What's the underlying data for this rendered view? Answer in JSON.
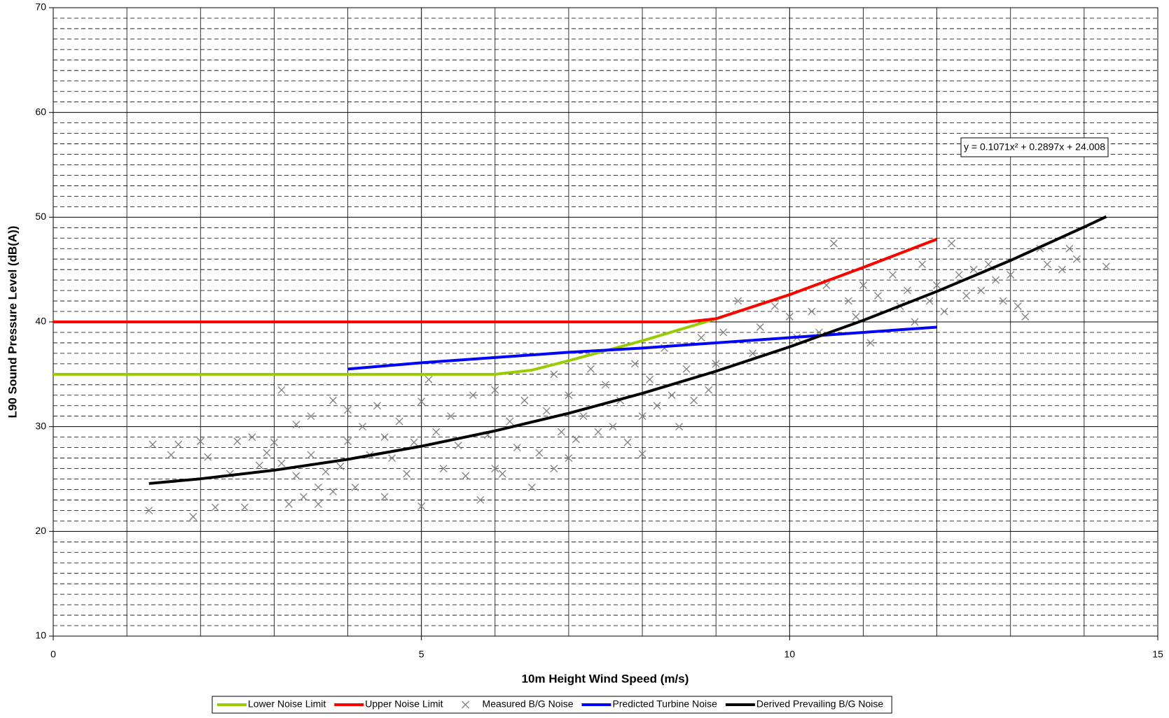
{
  "chart_data": {
    "type": "line",
    "x_label": "10m Height Wind Speed (m/s)",
    "y_label": "L90 Sound Pressure Level (dB(A))",
    "annotation": "y = 0.1071x² + 0.2897x + 24.008",
    "xlim": [
      0,
      15
    ],
    "xticks": [
      0,
      5,
      10,
      15
    ],
    "ylim": [
      10,
      70
    ],
    "yticks": [
      10,
      20,
      30,
      40,
      50,
      60,
      70
    ],
    "grid": true,
    "legend": "bottom",
    "series": [
      {
        "name": "Lower Noise Limit",
        "color": "#99cc00",
        "type": "line",
        "x": [
          0,
          1,
          2,
          3,
          4,
          5,
          6,
          6.5,
          7,
          8,
          9,
          10,
          11,
          12
        ],
        "values": [
          35,
          35,
          35,
          35,
          35,
          35,
          35,
          35.4,
          36.3,
          38.2,
          40.3,
          42.6,
          45.2,
          47.9
        ]
      },
      {
        "name": "Upper Noise Limit",
        "color": "#ff0000",
        "type": "line",
        "x": [
          0,
          1,
          2,
          3,
          4,
          5,
          6,
          7,
          8,
          8.6,
          9,
          10,
          11,
          12
        ],
        "values": [
          40,
          40,
          40,
          40,
          40,
          40,
          40,
          40,
          40,
          40,
          40.3,
          42.6,
          45.2,
          47.9
        ]
      },
      {
        "name": "Measured B/G Noise",
        "color": "#808080",
        "type": "scatter",
        "x": [
          1.3,
          1.35,
          1.6,
          1.7,
          1.9,
          2.0,
          2.1,
          2.2,
          2.4,
          2.5,
          2.6,
          2.7,
          2.8,
          2.9,
          3.0,
          3.1,
          3.1,
          3.2,
          3.3,
          3.3,
          3.4,
          3.5,
          3.5,
          3.6,
          3.6,
          3.7,
          3.8,
          3.8,
          3.9,
          4.0,
          4.0,
          4.1,
          4.2,
          4.3,
          4.4,
          4.5,
          4.5,
          4.6,
          4.7,
          4.8,
          4.9,
          5.0,
          5.0,
          5.1,
          5.2,
          5.3,
          5.4,
          5.5,
          5.6,
          5.7,
          5.8,
          5.9,
          6.0,
          6.0,
          6.1,
          6.2,
          6.3,
          6.4,
          6.5,
          6.6,
          6.7,
          6.8,
          6.8,
          6.9,
          7.0,
          7.0,
          7.1,
          7.2,
          7.3,
          7.4,
          7.5,
          7.6,
          7.7,
          7.8,
          7.9,
          8.0,
          8.0,
          8.1,
          8.2,
          8.3,
          8.4,
          8.5,
          8.6,
          8.7,
          8.8,
          8.9,
          9.0,
          9.1,
          9.3,
          9.5,
          9.6,
          9.8,
          10.0,
          10.1,
          10.3,
          10.4,
          10.5,
          10.6,
          10.8,
          10.9,
          11.0,
          11.1,
          11.2,
          11.4,
          11.5,
          11.6,
          11.7,
          11.8,
          11.9,
          12.0,
          12.1,
          12.2,
          12.3,
          12.4,
          12.5,
          12.6,
          12.7,
          12.8,
          12.9,
          13.0,
          13.1,
          13.2,
          13.4,
          13.5,
          13.7,
          13.8,
          13.9,
          14.3
        ],
        "values": [
          22,
          28.3,
          27.3,
          28.3,
          21.4,
          28.6,
          27.1,
          22.3,
          25.5,
          28.6,
          22.3,
          29,
          26.3,
          27.5,
          28.5,
          26.5,
          33.5,
          22.6,
          30.2,
          25.3,
          23.3,
          27.3,
          31,
          24.2,
          22.6,
          25.7,
          32.5,
          23.8,
          26.2,
          31.6,
          28.6,
          24.2,
          30,
          27.3,
          32,
          23.3,
          29,
          27,
          30.5,
          25.5,
          28.5,
          32.4,
          22.4,
          34.5,
          29.5,
          26,
          31,
          28.2,
          25.3,
          33,
          23,
          29.2,
          26,
          33.5,
          25.5,
          30.5,
          28,
          32.5,
          24.2,
          27.5,
          31.5,
          35,
          26,
          29.5,
          33,
          27,
          28.8,
          31,
          35.5,
          29.5,
          34,
          30,
          32.5,
          28.5,
          36,
          31,
          27.4,
          34.5,
          32,
          37.5,
          33,
          30,
          35.5,
          32.5,
          38.5,
          33.5,
          36,
          39,
          42,
          37,
          39.5,
          41.5,
          40.5,
          38.5,
          41,
          39,
          43.5,
          47.5,
          42,
          40.5,
          43.5,
          38,
          42.5,
          44.5,
          41.5,
          43,
          40,
          45.5,
          42,
          43.5,
          41,
          47.5,
          44.5,
          42.5,
          45,
          43,
          45.5,
          44,
          42,
          44.5,
          41.5,
          40.5,
          47,
          45.5,
          45,
          47,
          46,
          45.3
        ]
      },
      {
        "name": "Predicted Turbine Noise",
        "color": "#0000ff",
        "type": "line",
        "x": [
          4,
          5,
          6,
          7,
          8,
          9,
          10,
          11,
          12
        ],
        "values": [
          35.5,
          36.1,
          36.6,
          37.1,
          37.5,
          38,
          38.5,
          39,
          39.5
        ]
      },
      {
        "name": "Derived Prevailing B/G Noise",
        "color": "#000000",
        "type": "line",
        "x": [
          1.3,
          2,
          3,
          4,
          5,
          6,
          7,
          8,
          9,
          10,
          11,
          12,
          13,
          14,
          14.3
        ],
        "values": [
          24.57,
          25.02,
          25.84,
          26.88,
          28.13,
          29.6,
          31.28,
          33.18,
          35.29,
          37.62,
          40.15,
          42.91,
          45.87,
          49.06,
          50.05
        ]
      }
    ]
  }
}
